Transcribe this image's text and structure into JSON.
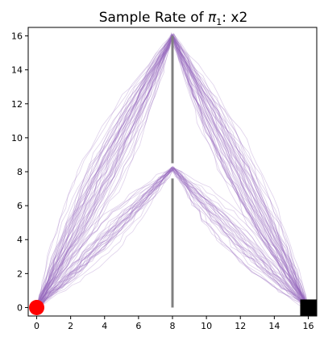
{
  "chart_data": {
    "type": "line",
    "title_prefix": "Sample Rate of ",
    "title_pi": "π",
    "title_sub": "1",
    "title_suffix": ": x2",
    "xlabel": "",
    "ylabel": "",
    "xlim": [
      -0.5,
      16.5
    ],
    "ylim": [
      -0.5,
      16.5
    ],
    "xticks": [
      0,
      2,
      4,
      6,
      8,
      10,
      12,
      14,
      16
    ],
    "yticks": [
      0,
      2,
      4,
      6,
      8,
      10,
      12,
      14,
      16
    ],
    "grid": false,
    "legend": "none",
    "start_point": {
      "x": 0,
      "y": 0,
      "color": "#ff0000"
    },
    "goal_point": {
      "x": 16,
      "y": 0,
      "color": "#000000"
    },
    "walls": [
      {
        "x": [
          8,
          8
        ],
        "y": [
          0,
          7.6
        ]
      },
      {
        "x": [
          8,
          8
        ],
        "y": [
          8.5,
          16
        ]
      }
    ],
    "wall_color": "#808080",
    "trajectory_color": "#9467bd",
    "trajectory_groups": [
      {
        "via": [
          8,
          16
        ],
        "count": 50
      },
      {
        "via": [
          8,
          8.2
        ],
        "count": 30
      }
    ]
  }
}
